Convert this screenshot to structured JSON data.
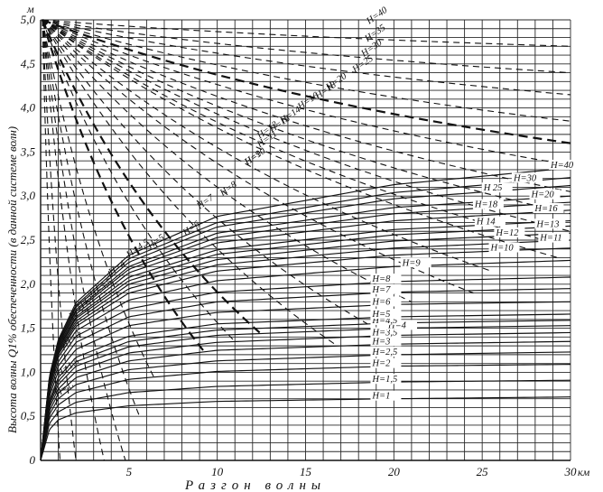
{
  "chart_data": {
    "type": "line",
    "title": "",
    "xlabel": "Разгон волны",
    "ylabel": "Высота волны Q1% обеспеченности (в данной системе волн)",
    "x_unit": "км",
    "y_unit": "м",
    "xlim": [
      0,
      30
    ],
    "ylim": [
      0,
      5
    ],
    "x_ticks": [
      "5",
      "10",
      "15",
      "20",
      "25",
      "30"
    ],
    "y_ticks": [
      "0",
      "0,5",
      "1,0",
      "1,5",
      "2,0",
      "2,5",
      "3,0",
      "3,5",
      "4,0",
      "4,5",
      "5,0"
    ],
    "grid": true,
    "solid_series": [
      {
        "name": "H=1",
        "label_x": 19.8,
        "values_at": [
          [
            0,
            0
          ],
          [
            0.5,
            0.35
          ],
          [
            1,
            0.46
          ],
          [
            2,
            0.54
          ],
          [
            5,
            0.62
          ],
          [
            10,
            0.67
          ],
          [
            20,
            0.7
          ],
          [
            30,
            0.72
          ]
        ]
      },
      {
        "name": "H=1,5",
        "label_x": 19.8,
        "values_at": [
          [
            0,
            0
          ],
          [
            0.5,
            0.42
          ],
          [
            1,
            0.55
          ],
          [
            2,
            0.66
          ],
          [
            5,
            0.77
          ],
          [
            10,
            0.84
          ],
          [
            20,
            0.89
          ],
          [
            30,
            0.91
          ]
        ]
      },
      {
        "name": "H=2",
        "label_x": 19.8,
        "values_at": [
          [
            0,
            0
          ],
          [
            0.5,
            0.48
          ],
          [
            1,
            0.63
          ],
          [
            2,
            0.77
          ],
          [
            5,
            0.92
          ],
          [
            10,
            1.01
          ],
          [
            20,
            1.07
          ],
          [
            30,
            1.09
          ]
        ]
      },
      {
        "name": "H=2,5",
        "label_x": 19.8,
        "values_at": [
          [
            0,
            0
          ],
          [
            0.5,
            0.52
          ],
          [
            1,
            0.7
          ],
          [
            2,
            0.86
          ],
          [
            5,
            1.03
          ],
          [
            10,
            1.13
          ],
          [
            20,
            1.2
          ],
          [
            30,
            1.23
          ]
        ]
      },
      {
        "name": "H=3",
        "label_x": 19.8,
        "values_at": [
          [
            0,
            0
          ],
          [
            0.5,
            0.56
          ],
          [
            1,
            0.76
          ],
          [
            2,
            0.94
          ],
          [
            5,
            1.13
          ],
          [
            10,
            1.25
          ],
          [
            20,
            1.32
          ],
          [
            30,
            1.35
          ]
        ]
      },
      {
        "name": "H=3,5",
        "label_x": 19.8,
        "values_at": [
          [
            0,
            0
          ],
          [
            0.5,
            0.6
          ],
          [
            1,
            0.81
          ],
          [
            2,
            1.01
          ],
          [
            5,
            1.22
          ],
          [
            10,
            1.34
          ],
          [
            20,
            1.42
          ],
          [
            30,
            1.45
          ]
        ]
      },
      {
        "name": "H=4",
        "label_x": 20.7,
        "values_at": [
          [
            0,
            0
          ],
          [
            0.5,
            0.63
          ],
          [
            1,
            0.86
          ],
          [
            2,
            1.07
          ],
          [
            5,
            1.29
          ],
          [
            10,
            1.42
          ],
          [
            20,
            1.5
          ],
          [
            30,
            1.53
          ]
        ]
      },
      {
        "name": "H=4,5",
        "label_x": 19.8,
        "values_at": [
          [
            0,
            0
          ],
          [
            0.5,
            0.66
          ],
          [
            1,
            0.9
          ],
          [
            2,
            1.12
          ],
          [
            5,
            1.35
          ],
          [
            10,
            1.48
          ],
          [
            20,
            1.56
          ],
          [
            30,
            1.59
          ]
        ]
      },
      {
        "name": "H=5",
        "label_x": 19.8,
        "values_at": [
          [
            0,
            0
          ],
          [
            0.5,
            0.68
          ],
          [
            1,
            0.94
          ],
          [
            2,
            1.17
          ],
          [
            5,
            1.41
          ],
          [
            10,
            1.55
          ],
          [
            20,
            1.63
          ],
          [
            30,
            1.66
          ]
        ]
      },
      {
        "name": "H=6",
        "label_x": 19.8,
        "values_at": [
          [
            0,
            0
          ],
          [
            0.5,
            0.73
          ],
          [
            1,
            1.01
          ],
          [
            2,
            1.26
          ],
          [
            5,
            1.53
          ],
          [
            10,
            1.68
          ],
          [
            20,
            1.77
          ],
          [
            30,
            1.8
          ]
        ]
      },
      {
        "name": "H=7",
        "label_x": 19.8,
        "values_at": [
          [
            0,
            0
          ],
          [
            0.5,
            0.77
          ],
          [
            1,
            1.07
          ],
          [
            2,
            1.34
          ],
          [
            5,
            1.63
          ],
          [
            10,
            1.8
          ],
          [
            20,
            1.91
          ],
          [
            30,
            1.95
          ]
        ]
      },
      {
        "name": "H=8",
        "label_x": 19.8,
        "values_at": [
          [
            0,
            0
          ],
          [
            0.5,
            0.81
          ],
          [
            1,
            1.12
          ],
          [
            2,
            1.41
          ],
          [
            5,
            1.72
          ],
          [
            10,
            1.91
          ],
          [
            20,
            2.03
          ],
          [
            30,
            2.08
          ]
        ]
      },
      {
        "name": "H=9",
        "label_x": 21.5,
        "values_at": [
          [
            0,
            0
          ],
          [
            0.5,
            0.84
          ],
          [
            1,
            1.17
          ],
          [
            2,
            1.47
          ],
          [
            5,
            1.82
          ],
          [
            10,
            2.04
          ],
          [
            20,
            2.2
          ],
          [
            30,
            2.27
          ]
        ]
      },
      {
        "name": "H=10",
        "label_x": 26.5,
        "values_at": [
          [
            0,
            0
          ],
          [
            0.5,
            0.86
          ],
          [
            1,
            1.2
          ],
          [
            2,
            1.52
          ],
          [
            5,
            1.9
          ],
          [
            10,
            2.15
          ],
          [
            20,
            2.33
          ],
          [
            30,
            2.41
          ]
        ]
      },
      {
        "name": "H=11",
        "label_x": 29.3,
        "values_at": [
          [
            0,
            0
          ],
          [
            0.5,
            0.87
          ],
          [
            1,
            1.22
          ],
          [
            2,
            1.55
          ],
          [
            5,
            1.95
          ],
          [
            10,
            2.22
          ],
          [
            20,
            2.41
          ],
          [
            30,
            2.5
          ]
        ]
      },
      {
        "name": "H=12",
        "label_x": 26.8,
        "values_at": [
          [
            0,
            0
          ],
          [
            0.5,
            0.88
          ],
          [
            1,
            1.24
          ],
          [
            2,
            1.58
          ],
          [
            5,
            2.0
          ],
          [
            10,
            2.28
          ],
          [
            20,
            2.49
          ],
          [
            30,
            2.58
          ]
        ]
      },
      {
        "name": "H=13",
        "label_x": 29.1,
        "values_at": [
          [
            0,
            0
          ],
          [
            0.5,
            0.89
          ],
          [
            1,
            1.26
          ],
          [
            2,
            1.61
          ],
          [
            5,
            2.04
          ],
          [
            10,
            2.34
          ],
          [
            20,
            2.56
          ],
          [
            30,
            2.66
          ]
        ]
      },
      {
        "name": "H 14",
        "label_x": 25.7,
        "values_at": [
          [
            0,
            0
          ],
          [
            0.5,
            0.9
          ],
          [
            1,
            1.27
          ],
          [
            2,
            1.63
          ],
          [
            5,
            2.08
          ],
          [
            10,
            2.39
          ],
          [
            20,
            2.62
          ],
          [
            30,
            2.72
          ]
        ]
      },
      {
        "name": "H=16",
        "label_x": 29.0,
        "values_at": [
          [
            0,
            0
          ],
          [
            0.5,
            0.91
          ],
          [
            1,
            1.29
          ],
          [
            2,
            1.66
          ],
          [
            5,
            2.13
          ],
          [
            10,
            2.47
          ],
          [
            20,
            2.72
          ],
          [
            30,
            2.84
          ]
        ]
      },
      {
        "name": "H=18",
        "label_x": 25.6,
        "values_at": [
          [
            0,
            0
          ],
          [
            0.5,
            0.92
          ],
          [
            1,
            1.31
          ],
          [
            2,
            1.69
          ],
          [
            5,
            2.17
          ],
          [
            10,
            2.53
          ],
          [
            20,
            2.8
          ],
          [
            30,
            2.93
          ]
        ]
      },
      {
        "name": "H=20",
        "label_x": 28.8,
        "values_at": [
          [
            0,
            0
          ],
          [
            0.5,
            0.93
          ],
          [
            1,
            1.32
          ],
          [
            2,
            1.71
          ],
          [
            5,
            2.2
          ],
          [
            10,
            2.58
          ],
          [
            20,
            2.87
          ],
          [
            30,
            3.0
          ]
        ]
      },
      {
        "name": "H 25",
        "label_x": 26.1,
        "values_at": [
          [
            0,
            0
          ],
          [
            0.5,
            0.94
          ],
          [
            1,
            1.34
          ],
          [
            2,
            1.74
          ],
          [
            5,
            2.25
          ],
          [
            10,
            2.65
          ],
          [
            20,
            2.97
          ],
          [
            30,
            3.12
          ]
        ]
      },
      {
        "name": "H=30",
        "label_x": 27.8,
        "values_at": [
          [
            0,
            0
          ],
          [
            0.5,
            0.95
          ],
          [
            1,
            1.35
          ],
          [
            2,
            1.76
          ],
          [
            5,
            2.29
          ],
          [
            10,
            2.7
          ],
          [
            20,
            3.04
          ],
          [
            30,
            3.21
          ]
        ]
      },
      {
        "name": "H=40",
        "label_x": 30.0,
        "values_at": [
          [
            0,
            0
          ],
          [
            0.5,
            0.96
          ],
          [
            1,
            1.37
          ],
          [
            2,
            1.79
          ],
          [
            5,
            2.33
          ],
          [
            10,
            2.77
          ],
          [
            20,
            3.13
          ],
          [
            30,
            3.32
          ]
        ]
      }
    ],
    "dashed_series": [
      {
        "name": "H=1.",
        "bold": false,
        "end": [
          1.1,
          0.0
        ],
        "label_at": [
          0.95,
          0.72
        ]
      },
      {
        "name": "H=1,5",
        "bold": false,
        "end": [
          2.0,
          0.0
        ],
        "label_at": [
          1.05,
          0.95
        ]
      },
      {
        "name": "H=2",
        "bold": false,
        "end": [
          3.6,
          0.0
        ],
        "label_at": [
          1.45,
          1.3
        ]
      },
      {
        "name": "H=2,5",
        "bold": false,
        "end": [
          4.8,
          0.0
        ],
        "label_at": [
          1.75,
          1.6
        ]
      },
      {
        "name": "H=3",
        "bold": false,
        "end": [
          5.6,
          0.5
        ],
        "label_at": [
          2.2,
          1.7
        ]
      },
      {
        "name": "H=3,5",
        "bold": false,
        "end": [
          6.4,
          0.95
        ],
        "label_at": [
          2.9,
          1.85
        ]
      },
      {
        "name": "H=4",
        "bold": true,
        "end": [
          9.2,
          1.25
        ],
        "label_at": [
          4.0,
          2.1
        ]
      },
      {
        "name": "H=4,5",
        "bold": false,
        "end": [
          11.0,
          1.35
        ],
        "label_at": [
          5.0,
          2.3
        ]
      },
      {
        "name": "H=5",
        "bold": true,
        "end": [
          12.4,
          1.45
        ],
        "label_at": [
          6.2,
          2.4
        ]
      },
      {
        "name": "H=6",
        "bold": false,
        "end": [
          16.8,
          1.3
        ],
        "label_at": [
          8.2,
          2.55
        ]
      },
      {
        "name": "H=7",
        "bold": false,
        "end": [
          18.5,
          1.55
        ],
        "label_at": [
          9.0,
          2.85
        ]
      },
      {
        "name": "H=8",
        "bold": false,
        "end": [
          21.0,
          1.8
        ],
        "label_at": [
          10.3,
          3.0
        ]
      },
      {
        "name": "H=9",
        "bold": false,
        "end": [
          24.5,
          1.9
        ],
        "label_at": [
          11.7,
          3.35
        ]
      },
      {
        "name": "H=10",
        "bold": false,
        "end": [
          25.5,
          2.15
        ],
        "label_at": [
          11.7,
          3.35
        ]
      },
      {
        "name": "H=11",
        "bold": false,
        "end": [
          29.3,
          2.3
        ],
        "label_at": [
          12.4,
          3.55
        ]
      },
      {
        "name": "H=12",
        "bold": false,
        "end": [
          28.5,
          2.5
        ],
        "label_at": [
          12.4,
          3.65
        ]
      },
      {
        "name": "H=13",
        "bold": false,
        "end": [
          30.0,
          2.6
        ],
        "label_at": [
          13.1,
          3.72
        ]
      },
      {
        "name": "H=14",
        "bold": false,
        "end": [
          30.0,
          2.8
        ],
        "label_at": [
          13.7,
          3.82
        ]
      },
      {
        "name": "H=16",
        "bold": false,
        "end": [
          30.0,
          3.05
        ],
        "label_at": [
          14.7,
          3.98
        ]
      },
      {
        "name": "H=18",
        "bold": false,
        "end": [
          30.0,
          3.35
        ],
        "label_at": [
          15.7,
          4.1
        ]
      },
      {
        "name": "H=20",
        "bold": true,
        "end": [
          30.0,
          3.6
        ],
        "label_at": [
          16.3,
          4.2
        ]
      },
      {
        "name": "H=25",
        "bold": false,
        "end": [
          30.0,
          3.85
        ],
        "label_at": [
          17.8,
          4.4
        ]
      },
      {
        "name": "H=30",
        "bold": false,
        "end": [
          30.0,
          4.15
        ],
        "label_at": [
          18.3,
          4.58
        ]
      },
      {
        "name": "H=35",
        "bold": false,
        "end": [
          30.0,
          4.4
        ],
        "label_at": [
          18.5,
          4.75
        ]
      },
      {
        "name": "H=40",
        "bold": false,
        "end": [
          30.0,
          4.7
        ],
        "label_at": [
          18.6,
          4.95
        ]
      }
    ]
  }
}
